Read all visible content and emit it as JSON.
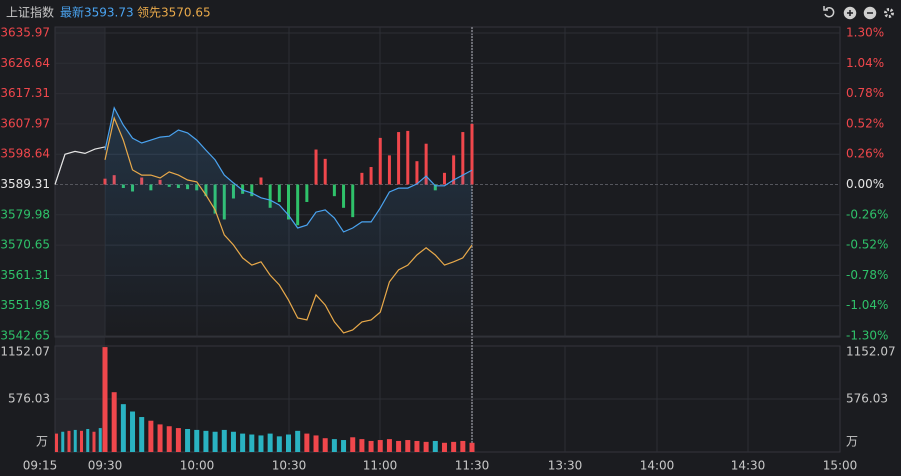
{
  "header": {
    "name": "上证指数",
    "latest": "最新3593.73",
    "leading": "领先3570.65"
  },
  "chart_data": [
    {
      "type": "line",
      "grid": true,
      "up_color": "#f0474c",
      "down_color": "#2fc26a",
      "ylim": [
        3542.65,
        3635.97
      ],
      "yticks": [
        3635.97,
        3626.64,
        3617.31,
        3607.97,
        3598.64,
        3589.31,
        3579.98,
        3570.65,
        3561.31,
        3551.98,
        3542.65
      ],
      "y2lim": [
        -1.3,
        1.3
      ],
      "y2ticks": [
        {
          "value": 1.3,
          "label": "1.30%"
        },
        {
          "value": 1.04,
          "label": "1.04%"
        },
        {
          "value": 0.78,
          "label": "0.78%"
        },
        {
          "value": 0.52,
          "label": "0.52%"
        },
        {
          "value": 0.26,
          "label": "0.26%"
        },
        {
          "value": 0,
          "label": "0.00%"
        },
        {
          "value": -0.26,
          "label": "-0.26%"
        },
        {
          "value": -0.52,
          "label": "-0.52%"
        },
        {
          "value": -0.78,
          "label": "-0.78%"
        },
        {
          "value": -1.04,
          "label": "-1.04%"
        },
        {
          "value": -1.3,
          "label": "-1.30%"
        }
      ],
      "xticks": [
        "09:15",
        "09:30",
        "10:00",
        "10:30",
        "11:00",
        "11:30",
        "13:30",
        "14:00",
        "14:30",
        "15:00"
      ],
      "series": [
        {
          "color": "#e6e6e6",
          "values": [
            3589.31,
            3598.6,
            3599.5,
            3598.9,
            3600.2,
            3600.9
          ]
        },
        {
          "color": "#4aa3f0",
          "values": [
            3599.9,
            3612.9,
            3607.6,
            3603.6,
            3602.1,
            3603.0,
            3603.9,
            3604.2,
            3606.1,
            3605.2,
            3603.0,
            3599.9,
            3596.9,
            3592.2,
            3589.8,
            3587.6,
            3586.7,
            3585.2,
            3584.5,
            3583.0,
            3579.9,
            3575.9,
            3576.8,
            3580.8,
            3581.5,
            3579.0,
            3574.7,
            3575.9,
            3577.8,
            3577.8,
            3582.1,
            3587.0,
            3588.2,
            3588.2,
            3589.5,
            3591.9,
            3588.9,
            3588.9,
            3590.7,
            3592.2,
            3593.73
          ]
        },
        {
          "color": "#e8a94a",
          "values": [
            3596.9,
            3609.8,
            3603.0,
            3593.8,
            3592.2,
            3592.2,
            3591.3,
            3593.2,
            3592.2,
            3590.7,
            3590.1,
            3586.1,
            3581.5,
            3573.8,
            3570.7,
            3566.7,
            3564.5,
            3565.5,
            3561.4,
            3558.4,
            3553.7,
            3548.2,
            3547.6,
            3555.3,
            3552.2,
            3547.0,
            3543.6,
            3544.5,
            3547.0,
            3547.6,
            3550.0,
            3559.3,
            3563.0,
            3564.5,
            3567.6,
            3569.8,
            3567.6,
            3564.5,
            3565.5,
            3566.7,
            3570.65
          ]
        },
        {
          "type": "bar",
          "axis": "y2",
          "values": [
            0.05,
            0.08,
            -0.03,
            -0.06,
            0.06,
            -0.05,
            0.04,
            -0.02,
            -0.03,
            -0.04,
            -0.05,
            -0.1,
            -0.25,
            -0.3,
            -0.12,
            -0.08,
            -0.1,
            0.06,
            -0.2,
            -0.15,
            -0.3,
            -0.35,
            -0.15,
            0.3,
            0.22,
            -0.1,
            -0.2,
            -0.28,
            0.1,
            0.15,
            0.4,
            0.25,
            0.45,
            0.46,
            0.2,
            0.35,
            -0.05,
            0.1,
            0.25,
            0.45,
            0.52
          ]
        }
      ]
    },
    {
      "type": "bar",
      "unit": "万",
      "up_color": "#f0474c",
      "down_color": "#2ab3c2",
      "ylim": [
        0,
        1152.07
      ],
      "yticks": [
        1152.07,
        576.03
      ],
      "auction_values": [
        200,
        220,
        230,
        240,
        230,
        250,
        220,
        260
      ],
      "values": [
        1140,
        650,
        520,
        440,
        380,
        340,
        300,
        280,
        260,
        250,
        240,
        230,
        220,
        240,
        220,
        200,
        190,
        180,
        200,
        170,
        190,
        230,
        200,
        180,
        150,
        140,
        130,
        160,
        140,
        120,
        130,
        140,
        120,
        130,
        120,
        110,
        120,
        100,
        110,
        120,
        100
      ]
    }
  ]
}
